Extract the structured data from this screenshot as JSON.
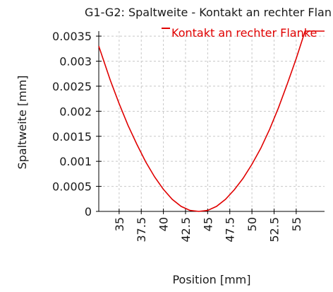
{
  "chart_data": {
    "type": "line",
    "title": "G1-G2: Spaltweite - Kontakt an rechter Flan",
    "xlabel": "Position [mm]",
    "ylabel": "Spaltweite [mm]",
    "xlim": [
      32.7,
      58.2
    ],
    "ylim": [
      0,
      0.0036
    ],
    "x_ticks": [
      35,
      37.5,
      40,
      42.5,
      45,
      47.5,
      50,
      52.5,
      55
    ],
    "x_tick_labels": [
      "35",
      "37.5",
      "40",
      "42.5",
      "45",
      "47.5",
      "50",
      "52.5",
      "55"
    ],
    "y_ticks": [
      0,
      0.0005,
      0.001,
      0.0015,
      0.002,
      0.0025,
      0.003,
      0.0035
    ],
    "y_tick_labels": [
      "0",
      "0.0005",
      "0.001",
      "0.0015",
      "0.002",
      "0.0025",
      "0.003",
      "0.0035"
    ],
    "grid": true,
    "legend_position": "top-right",
    "series": [
      {
        "name": "Kontakt an rechter Flanke",
        "color": "#e00000",
        "points": [
          [
            32.7,
            0.0033
          ],
          [
            34.0,
            0.00262
          ],
          [
            35.0,
            0.00215
          ],
          [
            36.0,
            0.00172
          ],
          [
            37.0,
            0.00134
          ],
          [
            38.0,
            0.00099
          ],
          [
            39.0,
            0.00069
          ],
          [
            40.0,
            0.00044
          ],
          [
            41.0,
            0.00024
          ],
          [
            42.0,
            0.0001
          ],
          [
            43.0,
            2e-05
          ],
          [
            44.0,
            0.0
          ],
          [
            45.0,
            2e-05
          ],
          [
            46.0,
            0.0001
          ],
          [
            47.0,
            0.00024
          ],
          [
            48.0,
            0.00043
          ],
          [
            49.0,
            0.00066
          ],
          [
            50.0,
            0.00094
          ],
          [
            51.0,
            0.00126
          ],
          [
            52.0,
            0.00164
          ],
          [
            53.0,
            0.00207
          ],
          [
            54.0,
            0.00255
          ],
          [
            55.0,
            0.00305
          ],
          [
            56.0,
            0.0036
          ],
          [
            58.2,
            0.0036
          ]
        ]
      }
    ]
  }
}
